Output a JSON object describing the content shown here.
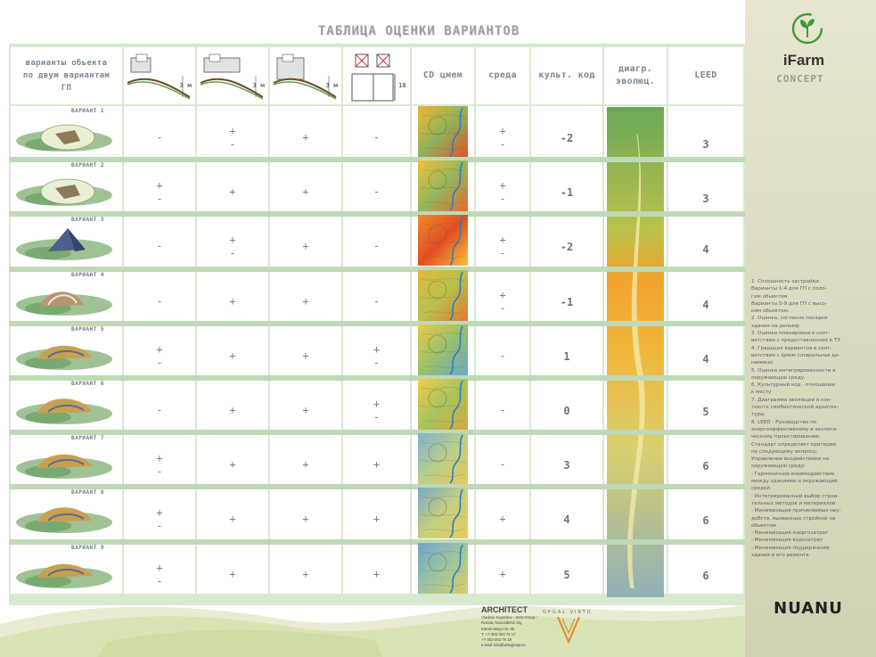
{
  "title": "ТАБЛИЦА ОЦЕНКИ ВАРИАНТОВ",
  "headers": {
    "variants": "варианты обьекта по двум вариантам ГП",
    "sketch1_label": "3 м",
    "sketch2_label": "3 м",
    "sketch3_label": "3 м",
    "sketch4_label": "18",
    "cd_cmem": "CD цмем",
    "sreda": "среда",
    "kult_kod": "культ. код",
    "diagram": "диагр. эволюц.",
    "leed": "LEED"
  },
  "rows": [
    {
      "label": "ВАРИАНТ 1",
      "c1": [
        "-"
      ],
      "c2": [
        "+",
        "-"
      ],
      "c3": [
        "+"
      ],
      "c4": [
        "-"
      ],
      "sreda": [
        "+",
        "-"
      ],
      "kod": "-2",
      "leed": "3"
    },
    {
      "label": "ВАРИАНТ 2",
      "c1": [
        "+",
        "-"
      ],
      "c2": [
        "+"
      ],
      "c3": [
        "+"
      ],
      "c4": [
        "-"
      ],
      "sreda": [
        "+",
        "-"
      ],
      "kod": "-1",
      "leed": "3"
    },
    {
      "label": "ВАРИАНТ 3",
      "c1": [
        "-"
      ],
      "c2": [
        "+",
        "-"
      ],
      "c3": [
        "+"
      ],
      "c4": [
        "-"
      ],
      "sreda": [
        "+",
        "-"
      ],
      "kod": "-2",
      "leed": "4"
    },
    {
      "label": "ВАРИАНТ 4",
      "c1": [
        "-"
      ],
      "c2": [
        "+"
      ],
      "c3": [
        "+"
      ],
      "c4": [
        "-"
      ],
      "sreda": [
        "+",
        "-"
      ],
      "kod": "-1",
      "leed": "4"
    },
    {
      "label": "ВАРИАНТ 5",
      "c1": [
        "+",
        "-"
      ],
      "c2": [
        "+"
      ],
      "c3": [
        "+"
      ],
      "c4": [
        "+",
        "-"
      ],
      "sreda": [
        "-"
      ],
      "kod": "1",
      "leed": "4"
    },
    {
      "label": "ВАРИАНТ 6",
      "c1": [
        "-"
      ],
      "c2": [
        "+"
      ],
      "c3": [
        "+"
      ],
      "c4": [
        "+",
        "-"
      ],
      "sreda": [
        "-"
      ],
      "kod": "0",
      "leed": "5"
    },
    {
      "label": "ВАРИАНТ 7",
      "c1": [
        "+",
        "-"
      ],
      "c2": [
        "+"
      ],
      "c3": [
        "+"
      ],
      "c4": [
        "+"
      ],
      "sreda": [
        "-"
      ],
      "kod": "3",
      "leed": "6"
    },
    {
      "label": "ВАРИАНТ 8",
      "c1": [
        "+",
        "-"
      ],
      "c2": [
        "+"
      ],
      "c3": [
        "+"
      ],
      "c4": [
        "+"
      ],
      "sreda": [
        "+"
      ],
      "kod": "4",
      "leed": "6"
    },
    {
      "label": "ВАРИАНТ 9",
      "c1": [
        "+",
        "-"
      ],
      "c2": [
        "+"
      ],
      "c3": [
        "+"
      ],
      "c4": [
        "+"
      ],
      "sreda": [
        "+"
      ],
      "kod": "5",
      "leed": "6"
    }
  ],
  "map_palettes": [
    [
      "#f0b630",
      "#8fb35a",
      "#e0532a"
    ],
    [
      "#f2c038",
      "#93b75c",
      "#e66a2b"
    ],
    [
      "#f08a2a",
      "#e24e22",
      "#f5c23a"
    ],
    [
      "#e3b83a",
      "#b5c14e",
      "#e7782d"
    ],
    [
      "#e9cc48",
      "#98c06a",
      "#6fa8c8"
    ],
    [
      "#eecf4a",
      "#a7c45e",
      "#d7a63b"
    ],
    [
      "#7fb0cf",
      "#b9cf8b",
      "#e8c659"
    ],
    [
      "#78a8c8",
      "#c6d07f",
      "#e8cb5c"
    ],
    [
      "#6fa7cc",
      "#9cc49f",
      "#d8cf66"
    ]
  ],
  "brand": {
    "name": "iFarm",
    "sub": "CONCEPT",
    "bottom": "NUANU"
  },
  "notes": [
    "1. Сплошность застройки:",
    "Варианты 1-4 для ГП с поло-",
    "гим обьектом.",
    "Варианты 5-9 для ГП с высо-",
    "ким обьектом.",
    "2. Оценка, согласно посадки",
    "здания на рельеф.",
    "3. Оценка планировки в соот-",
    "ветствии с предоставленной в ТЗ",
    "4. Градация вариантов в соот-",
    "ветствии с Цмем (спиральная ди-",
    "намика).",
    "5. Оценка интегрированности в",
    "окружающую среду.",
    "6. Культурный код - отношение",
    "к месту",
    "7. Диаграмма эволюции в кон-",
    "тексте симбиотической архитек-",
    "туры.",
    "8. LEED - Руководство по",
    "энергоэффективному и экологи-",
    "ческому проектированию.",
    " Стандарт определяет критерии",
    "по следующему вопросу:",
    "Управление воздействием на",
    "окружающую среду:",
    "- Гармоничное взаимодействие",
    "между зданиями и окружающей",
    "средой",
    "- Интегрированный выбор строи-",
    "тельных методов и материалов",
    "- Минимизация причиняемых неу-",
    "добств, вызванных стройкой на",
    "обьектом",
    "- Минимизация энергозатрат",
    "- Минимизация водозатрат",
    "- Минимизация поддержания",
    "здания и его ремонта"
  ],
  "footer": {
    "architect": "ARCHITECT",
    "architect_sub": "OPGAL VIRTU",
    "lines": [
      "Vladimir Kryazhov - Virtu Group -",
      "Russia, Novosibirsk city,",
      "Kamenskaya St. 55",
      "T: +7-383-363 76 17",
      "+7-383-363 76 18"
    ],
    "email": "e-mail: info@virtugroup.ru"
  },
  "colors": {
    "grid": "#d7ead0",
    "row_band": "#bfd9b6",
    "panel": "#e8e6d0",
    "brand_green": "#3d9a3a",
    "footer_green": "#cfe0a8"
  }
}
